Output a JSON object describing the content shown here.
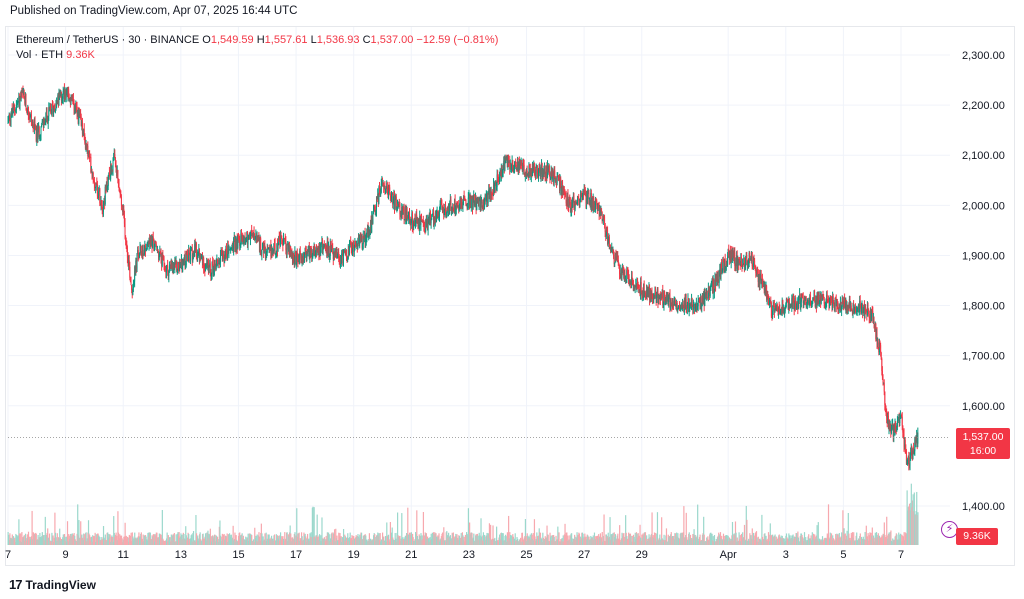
{
  "header": {
    "published": "Published on TradingView.com, Apr 07, 2025 16:44 UTC"
  },
  "legend": {
    "symbol": "Ethereum / TetherUS · 30 · BINANCE",
    "o_label": "O",
    "o_value": "1,549.59",
    "h_label": "H",
    "h_value": "1,557.61",
    "l_label": "L",
    "l_value": "1,536.93",
    "c_label": "C",
    "c_value": "1,537.00",
    "change": "−12.59 (−0.81%)",
    "vol_label": "Vol · ETH",
    "vol_value": "9.36K"
  },
  "price_tag": {
    "price": "1,537.00",
    "countdown": "16:00"
  },
  "vol_tag": "9.36K",
  "footer": {
    "brand": "TradingView",
    "logo": "17"
  },
  "colors": {
    "up": "#089981",
    "down": "#f23645",
    "up_vol": "#9bd8cc",
    "down_vol": "#f7a8ae",
    "grid": "#f0f3fa",
    "axis_text": "#131722"
  },
  "chart_data": {
    "type": "candlestick",
    "symbol": "ETH/USDT",
    "interval": "30",
    "exchange": "BINANCE",
    "ylim": [
      1330,
      2350
    ],
    "y_ticks": [
      2300,
      2200,
      2100,
      2000,
      1900,
      1800,
      1700,
      1600,
      1400
    ],
    "y_tick_labels": [
      "2,300.00",
      "2,200.00",
      "2,100.00",
      "2,000.00",
      "1,900.00",
      "1,800.00",
      "1,700.00",
      "1,600.00",
      "1,400.00"
    ],
    "x_tick_labels": [
      "7",
      "9",
      "11",
      "13",
      "15",
      "17",
      "19",
      "21",
      "23",
      "25",
      "27",
      "29",
      "Apr",
      "3",
      "5",
      "7"
    ],
    "x_range_days": [
      7,
      39.7
    ],
    "x_ticks_day": [
      7,
      9,
      11,
      13,
      15,
      17,
      19,
      21,
      23,
      25,
      27,
      29,
      32,
      34,
      36,
      38
    ],
    "path_day": [
      7.0,
      7.5,
      8.0,
      8.5,
      9.0,
      9.5,
      10.0,
      10.3,
      10.5,
      10.7,
      11.0,
      11.3,
      11.5,
      12.0,
      12.5,
      13.0,
      13.5,
      14.0,
      14.5,
      15.0,
      15.5,
      16.0,
      16.5,
      17.0,
      17.5,
      18.0,
      18.5,
      19.0,
      19.3,
      19.6,
      20.0,
      20.5,
      21.0,
      21.5,
      22.0,
      22.5,
      23.0,
      23.5,
      24.0,
      24.3,
      24.6,
      25.0,
      25.5,
      26.0,
      26.5,
      27.0,
      27.5,
      28.0,
      28.3,
      28.6,
      29.0,
      29.5,
      30.0,
      30.5,
      31.0,
      31.5,
      32.0,
      32.5,
      32.8,
      33.0,
      33.3,
      33.5,
      34.0,
      34.5,
      35.0,
      35.5,
      36.0,
      36.5,
      37.0,
      37.3,
      37.5,
      37.7,
      38.0,
      38.2,
      38.4,
      38.6
    ],
    "path_close": [
      2170,
      2220,
      2140,
      2190,
      2230,
      2170,
      2050,
      2000,
      2060,
      2090,
      1980,
      1830,
      1900,
      1930,
      1870,
      1880,
      1910,
      1870,
      1900,
      1930,
      1940,
      1900,
      1930,
      1890,
      1910,
      1920,
      1890,
      1920,
      1930,
      1960,
      2050,
      2000,
      1970,
      1960,
      1990,
      2000,
      2010,
      2000,
      2050,
      2090,
      2080,
      2070,
      2070,
      2060,
      2000,
      2020,
      2000,
      1900,
      1870,
      1850,
      1830,
      1820,
      1810,
      1800,
      1800,
      1840,
      1900,
      1880,
      1900,
      1860,
      1830,
      1790,
      1800,
      1810,
      1810,
      1810,
      1800,
      1800,
      1780,
      1700,
      1570,
      1550,
      1580,
      1480,
      1510,
      1537
    ]
  }
}
